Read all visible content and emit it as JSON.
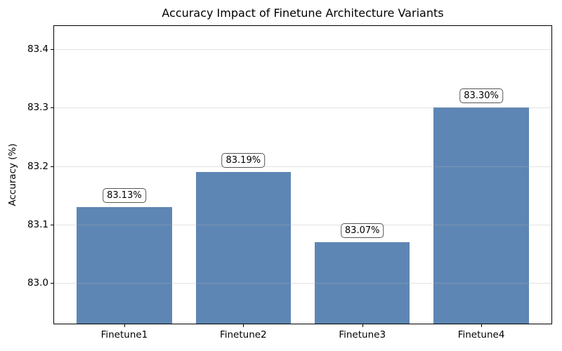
{
  "chart_data": {
    "type": "bar",
    "title": "Accuracy Impact of Finetune Architecture Variants",
    "xlabel": "",
    "ylabel": "Accuracy (%)",
    "categories": [
      "Finetune1",
      "Finetune2",
      "Finetune3",
      "Finetune4"
    ],
    "values": [
      83.13,
      83.19,
      83.07,
      83.3
    ],
    "value_labels": [
      "83.13%",
      "83.19%",
      "83.07%",
      "83.30%"
    ],
    "ylim": [
      82.93,
      83.44
    ],
    "yticks": [
      83.0,
      83.1,
      83.2,
      83.3,
      83.4
    ],
    "ytick_labels": [
      "83.0",
      "83.1",
      "83.2",
      "83.3",
      "83.4"
    ],
    "xlim": [
      -0.59,
      3.59
    ],
    "bar_width_frac": 0.8,
    "grid": "horizontal-only, drawn above bars, light",
    "legend": "none",
    "colors": {
      "bar": "#5e86b4",
      "grid": "rgba(176,176,176,0.35)",
      "spine": "#000000",
      "annotation_bg": "#fdfdfd",
      "annotation_border": "#565656",
      "background": "#ffffff"
    }
  }
}
